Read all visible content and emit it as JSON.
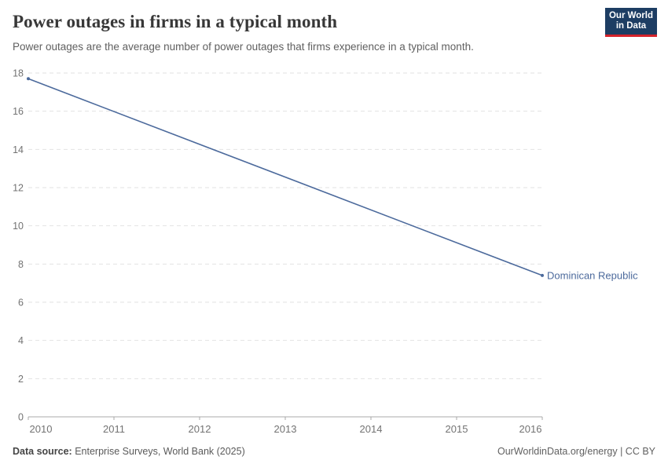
{
  "header": {
    "title": "Power outages in firms in a typical month",
    "subtitle": "Power outages are the average number of power outages that firms experience in a typical month.",
    "logo": {
      "line1": "Our World",
      "line2": "in Data"
    }
  },
  "chart_data": {
    "type": "line",
    "title": "Power outages in firms in a typical month",
    "xlabel": "",
    "ylabel": "",
    "xlim": [
      2010,
      2016
    ],
    "ylim": [
      0,
      18
    ],
    "xticks": [
      2010,
      2011,
      2012,
      2013,
      2014,
      2015,
      2016
    ],
    "yticks": [
      0,
      2,
      4,
      6,
      8,
      10,
      12,
      14,
      16,
      18
    ],
    "grid": "horizontal-dashed",
    "legend": "end-of-line-label",
    "series": [
      {
        "name": "Dominican Republic",
        "color": "#4C6A9C",
        "x": [
          2010,
          2016
        ],
        "values": [
          17.7,
          7.4
        ]
      }
    ]
  },
  "footer": {
    "source_label": "Data source:",
    "source_value": "Enterprise Surveys, World Bank (2025)",
    "credit": "OurWorldinData.org/energy | CC BY"
  },
  "colors": {
    "line": "#4C6A9C",
    "entity_label": "#4C6A9C",
    "grid": "#e2e2e2",
    "axis": "#a9a9a9",
    "tick_label": "#737373"
  }
}
